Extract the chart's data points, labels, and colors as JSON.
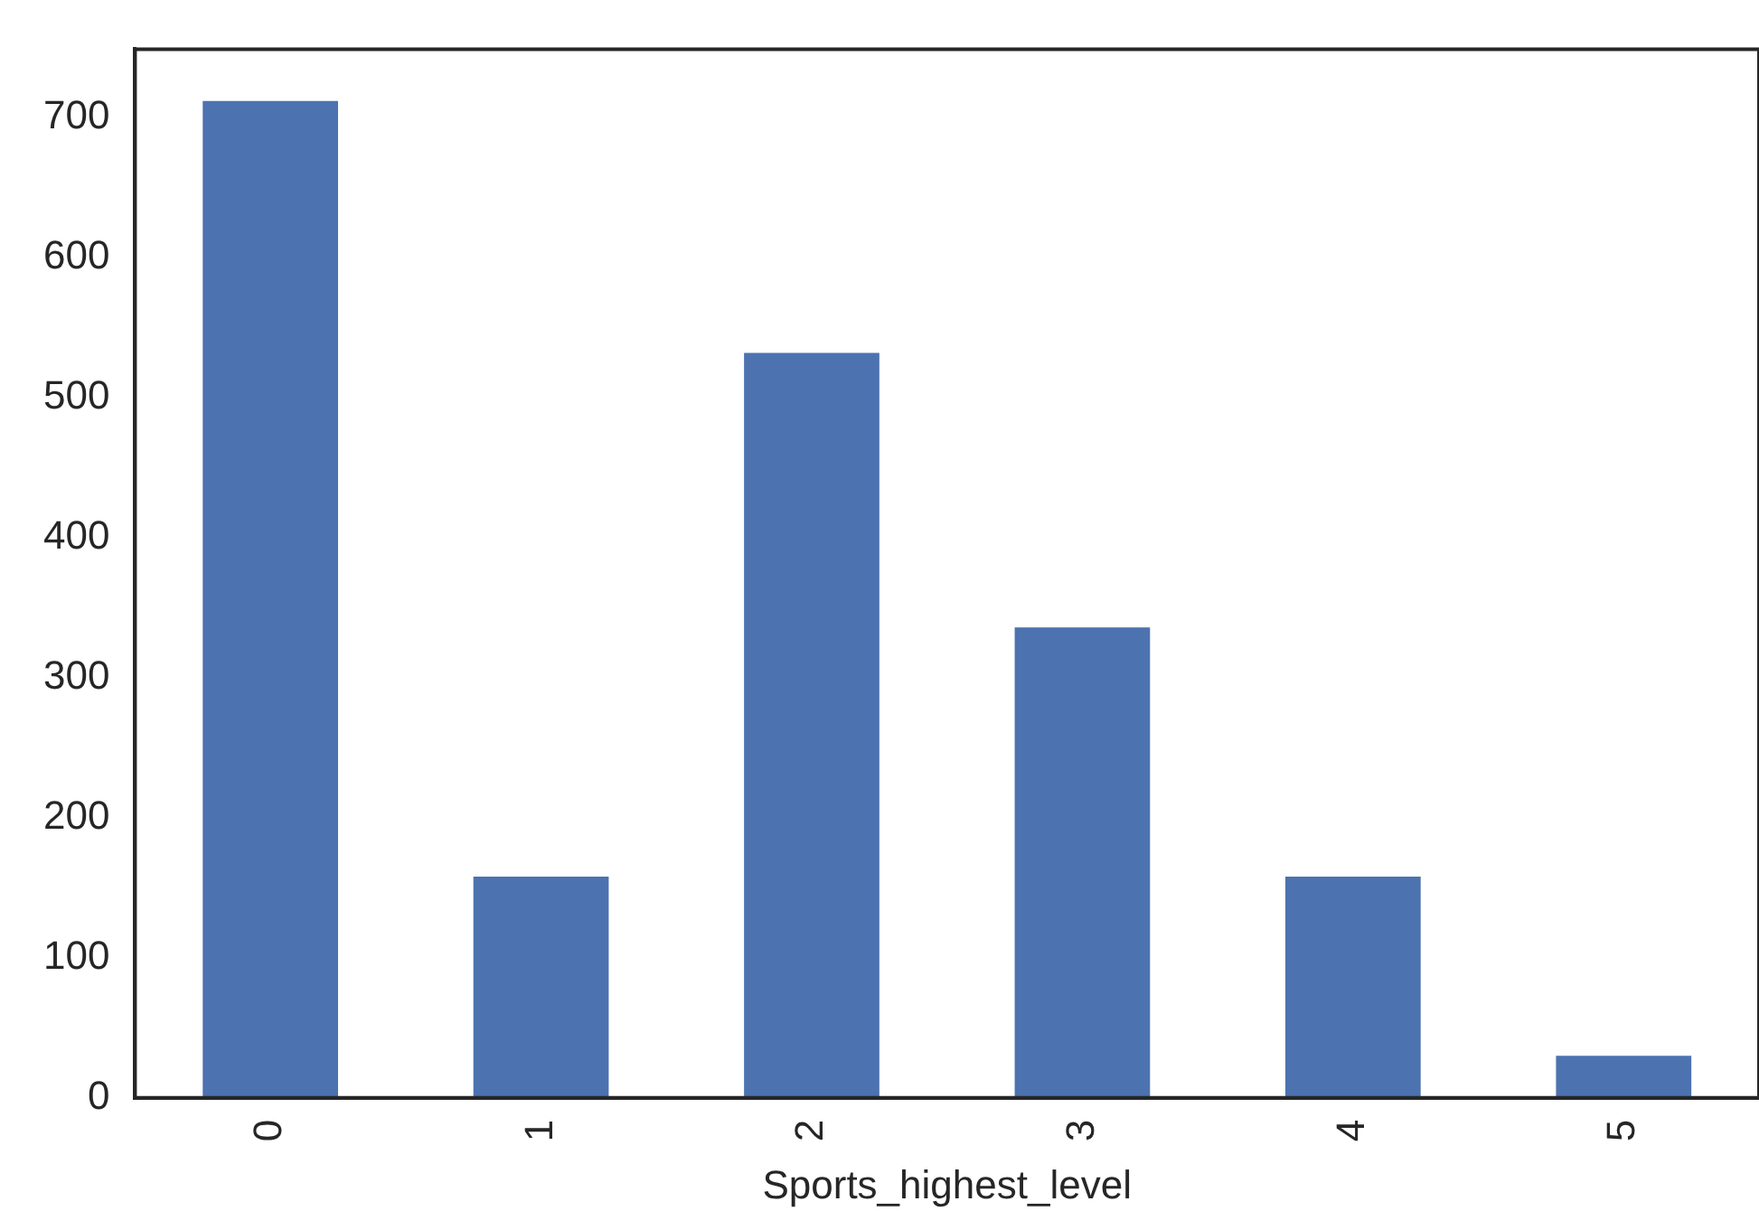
{
  "chart_data": {
    "type": "bar",
    "xlabel": "Sports_highest_level",
    "categories": [
      "0",
      "1",
      "2",
      "3",
      "4",
      "5"
    ],
    "values": [
      712,
      158,
      532,
      336,
      158,
      30
    ],
    "color": "#4c72b0",
    "ylim": [
      0,
      749
    ],
    "yticks": [
      0,
      100,
      200,
      300,
      400,
      500,
      600,
      700
    ],
    "grid": false,
    "legend": false
  }
}
